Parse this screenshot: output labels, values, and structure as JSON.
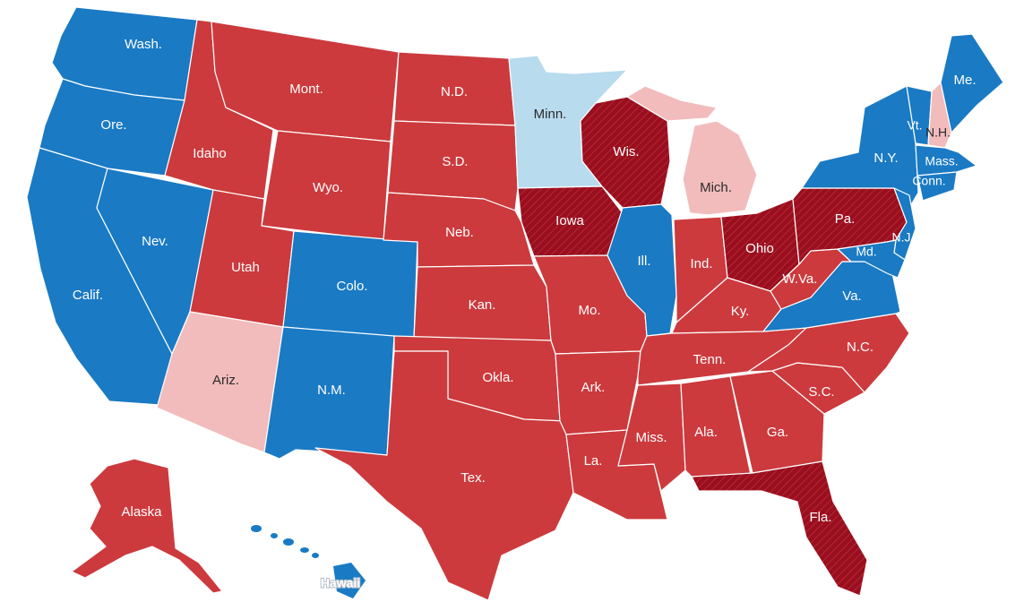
{
  "colors": {
    "dem": "#1a7ac4",
    "dem_flip": "#b8dbee",
    "rep": "#cc3a3d",
    "rep_flip": "#f2bcbc",
    "rep_pickup": "#990f1f"
  },
  "states": {
    "wash": "Wash.",
    "ore": "Ore.",
    "calif": "Calif.",
    "nev": "Nev.",
    "idaho": "Idaho",
    "mont": "Mont.",
    "wyo": "Wyo.",
    "utah": "Utah",
    "ariz": "Ariz.",
    "colo": "Colo.",
    "nm": "N.M.",
    "nd": "N.D.",
    "sd": "S.D.",
    "neb": "Neb.",
    "kan": "Kan.",
    "okla": "Okla.",
    "tex": "Tex.",
    "minn": "Minn.",
    "iowa": "Iowa",
    "mo": "Mo.",
    "ark": "Ark.",
    "la": "La.",
    "wis": "Wis.",
    "ill": "Ill.",
    "mich": "Mich.",
    "ind": "Ind.",
    "ohio": "Ohio",
    "ky": "Ky.",
    "tenn": "Tenn.",
    "miss": "Miss.",
    "ala": "Ala.",
    "ga": "Ga.",
    "fla": "Fla.",
    "sc": "S.C.",
    "nc": "N.C.",
    "va": "Va.",
    "wva": "W.Va.",
    "pa": "Pa.",
    "ny": "N.Y.",
    "md": "Md.",
    "nj": "N.J.",
    "vt": "Vt.",
    "nh": "N.H.",
    "me": "Me.",
    "mass": "Mass.",
    "conn": "Conn.",
    "alaska": "Alaska",
    "hawaii": "Hawaii"
  }
}
